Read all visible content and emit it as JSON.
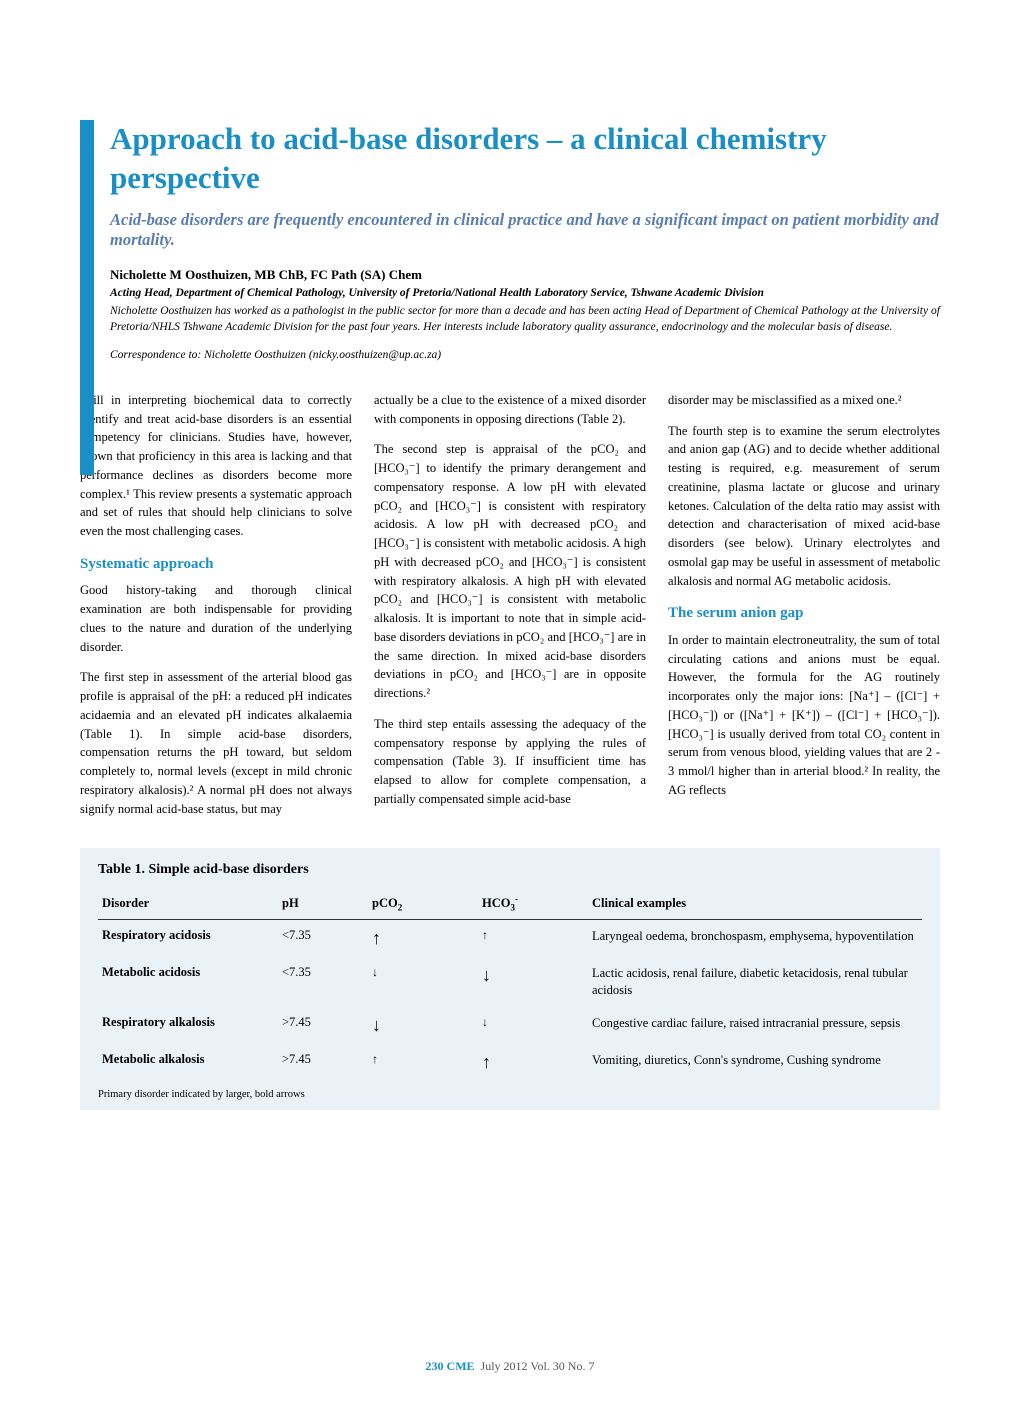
{
  "colors": {
    "accent": "#1a8fc5",
    "subtitle": "#5a7db0",
    "table_bg": "#eaf1f7",
    "body_text": "#000000",
    "background": "#ffffff"
  },
  "header": {
    "title": "Approach to acid-base disorders – a clinical chemistry perspective",
    "subtitle": "Acid-base disorders are frequently encountered in clinical practice and have a significant impact on patient morbidity and mortality.",
    "author_name": "Nicholette M Oosthuizen, MB ChB, FC Path (SA) Chem",
    "author_affil": "Acting Head, Department of Chemical Pathology, University of Pretoria/National Health Laboratory Service, Tshwane Academic Division",
    "author_bio": "Nicholette Oosthuizen has worked as a pathologist in the public sector for more than a decade and has been acting Head of Department of Chemical Pathology at the University of Pretoria/NHLS Tshwane Academic Division for the past four years. Her interests include laboratory quality assurance, endocrinology and the molecular basis of disease.",
    "correspondence": "Correspondence to: Nicholette Oosthuizen (nicky.oosthuizen@up.ac.za)"
  },
  "body": {
    "col1": {
      "p1": "Skill in interpreting biochemical data to correctly identify and treat acid-base disorders is an essential competency for clinicians. Studies have, however, shown that proficiency in this area is lacking and that performance declines as disorders become more complex.¹ This review presents a systematic approach and set of rules that should help clinicians to solve even the most challenging cases.",
      "h1": "Systematic approach",
      "p2": "Good history-taking and thorough clinical examination are both indispensable for providing clues to the nature and duration of the underlying disorder.",
      "p3": "The first step in assessment of the arterial blood gas profile is appraisal of the pH: a reduced pH indicates acidaemia and an elevated pH indicates alkalaemia (Table 1). In simple acid-base disorders, compensation returns the pH toward, but seldom completely to, normal levels (except in mild chronic respiratory alkalosis).² A normal pH does not always signify normal acid-base status, but may"
    },
    "col2": {
      "p1": "actually be a clue to the existence of a mixed disorder with components in opposing directions (Table 2).",
      "p2": "The second step is appraisal of the pCO₂ and [HCO₃⁻] to identify the primary derangement and compensatory response. A low pH with elevated pCO₂ and [HCO₃⁻] is consistent with respiratory acidosis. A low pH with decreased pCO₂ and [HCO₃⁻] is consistent with metabolic acidosis. A high pH with decreased pCO₂ and [HCO₃⁻] is consistent with respiratory alkalosis. A high pH with elevated pCO₂ and [HCO₃⁻] is consistent with metabolic alkalosis. It is important to note that in simple acid-base disorders deviations in pCO₂ and [HCO₃⁻] are in the same direction. In mixed acid-base disorders deviations in pCO₂ and [HCO₃⁻] are in opposite directions.²",
      "p3": "The third step entails assessing the adequacy of the compensatory response by applying the rules of compensation (Table 3). If insufficient time has elapsed to allow for complete compensation, a partially compensated simple acid-base"
    },
    "col3": {
      "p1": "disorder may be misclassified as a mixed one.²",
      "p2": "The fourth step is to examine the serum electrolytes and anion gap (AG) and to decide whether additional testing is required, e.g. measurement of serum creatinine, plasma lactate or glucose and urinary ketones. Calculation of the delta ratio may assist with detection and characterisation of mixed acid-base disorders (see below). Urinary electrolytes and osmolal gap may be useful in assessment of metabolic alkalosis and normal AG metabolic acidosis.",
      "h1": "The serum anion gap",
      "p3": "In order to maintain electroneutrality, the sum of total circulating cations and anions must be equal. However, the formula for the AG routinely incorporates only the major ions: [Na⁺] – ([Cl⁻] + [HCO₃⁻]) or ([Na⁺] + [K⁺]) – ([Cl⁻] + [HCO₃⁻]). [HCO₃⁻] is usually derived from total CO₂ content in serum from venous blood, yielding values that are 2 - 3 mmol/l higher than in arterial blood.² In reality, the AG reflects"
    }
  },
  "table1": {
    "title": "Table 1. Simple acid-base disorders",
    "columns": [
      "Disorder",
      "pH",
      "pCO₂",
      "HCO₃⁻",
      "Clinical examples"
    ],
    "rows": [
      {
        "disorder": "Respiratory acidosis",
        "ph": "<7.35",
        "pco2": "↑",
        "hco3": "↑",
        "pco2_bold": true,
        "hco3_bold": false,
        "examples": "Laryngeal oedema, bronchospasm, emphysema, hypoventilation"
      },
      {
        "disorder": "Metabolic acidosis",
        "ph": "<7.35",
        "pco2": "↓",
        "hco3": "↓",
        "pco2_bold": false,
        "hco3_bold": true,
        "examples": "Lactic acidosis, renal failure, diabetic ketacidosis, renal tubular acidosis"
      },
      {
        "disorder": "Respiratory alkalosis",
        "ph": ">7.45",
        "pco2": "↓",
        "hco3": "↓",
        "pco2_bold": true,
        "hco3_bold": false,
        "examples": "Congestive cardiac failure, raised intracranial pressure, sepsis"
      },
      {
        "disorder": "Metabolic alkalosis",
        "ph": ">7.45",
        "pco2": "↑",
        "hco3": "↑",
        "pco2_bold": false,
        "hco3_bold": true,
        "examples": "Vomiting, diuretics, Conn's syndrome, Cushing syndrome"
      }
    ],
    "footnote": "Primary disorder indicated by larger, bold arrows"
  },
  "footer": {
    "page": "230",
    "journal": "CME",
    "rest": "July  2012  Vol. 30  No. 7"
  }
}
